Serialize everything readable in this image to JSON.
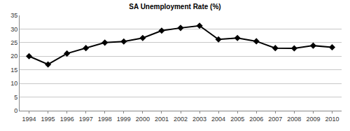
{
  "chart_data": {
    "type": "line",
    "title": "SA Unemployment Rate (%)",
    "categories": [
      "1994",
      "1995",
      "1996",
      "1997",
      "1998",
      "1999",
      "2000",
      "2001",
      "2002",
      "2003",
      "2004",
      "2005",
      "2006",
      "2007",
      "2008",
      "2009",
      "2010"
    ],
    "values": [
      20,
      17,
      21,
      23,
      25,
      25.4,
      26.7,
      29.4,
      30.4,
      31.2,
      26.2,
      26.7,
      25.5,
      23,
      22.9,
      23.9,
      23.3
    ],
    "color": "#000000",
    "marker": "diamond",
    "line_style": "solid",
    "ylim": [
      0,
      35
    ],
    "yticks": [
      0,
      5,
      10,
      15,
      20,
      25,
      30,
      35
    ],
    "grid": true
  }
}
